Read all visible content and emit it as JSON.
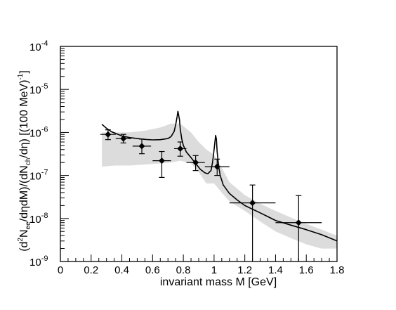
{
  "chart_data": {
    "type": "line",
    "title": "",
    "xlabel": "invariant mass M [GeV]",
    "ylabel_parts": {
      "open": "(d",
      "sup2": "2",
      "n1": "N",
      "sub_ee": "ee",
      "mid": "/dηdM)/(dN",
      "sub_ch": "ch",
      "tail": "/dη) [(100 MeV)",
      "sup_m1": "-1",
      "close": "]"
    },
    "xlim": [
      0,
      1.8
    ],
    "ylim": [
      1e-09,
      0.0001
    ],
    "yscale": "log",
    "grid": false,
    "x_ticks": [
      "0",
      "0.2",
      "0.4",
      "0.6",
      "0.8",
      "1",
      "1.2",
      "1.4",
      "1.6",
      "1.8"
    ],
    "y_ticks": [
      {
        "base": "10",
        "exp": "-9"
      },
      {
        "base": "10",
        "exp": "-8"
      },
      {
        "base": "10",
        "exp": "-7"
      },
      {
        "base": "10",
        "exp": "-6"
      },
      {
        "base": "10",
        "exp": "-5"
      },
      {
        "base": "10",
        "exp": "-4"
      }
    ],
    "data_points": [
      {
        "x": 0.31,
        "y": 9e-07,
        "xerr": 0.05,
        "ylo": 6.8e-07,
        "yhi": 1.15e-06
      },
      {
        "x": 0.41,
        "y": 7.2e-07,
        "xerr": 0.05,
        "ylo": 5.7e-07,
        "yhi": 9e-07
      },
      {
        "x": 0.53,
        "y": 4.8e-07,
        "xerr": 0.06,
        "ylo": 3.2e-07,
        "yhi": 7e-07
      },
      {
        "x": 0.66,
        "y": 2.2e-07,
        "xerr": 0.06,
        "ylo": 9e-08,
        "yhi": 3.6e-07
      },
      {
        "x": 0.78,
        "y": 4.2e-07,
        "xerr": 0.04,
        "ylo": 2.8e-07,
        "yhi": 6e-07
      },
      {
        "x": 0.88,
        "y": 2e-07,
        "xerr": 0.06,
        "ylo": 1.3e-07,
        "yhi": 2.9e-07
      },
      {
        "x": 1.02,
        "y": 1.6e-07,
        "xerr": 0.08,
        "ylo": 1e-07,
        "yhi": 2.4e-07
      },
      {
        "x": 1.25,
        "y": 2.3e-08,
        "xerr": 0.15,
        "ylo": 1e-09,
        "yhi": 6e-08
      },
      {
        "x": 1.55,
        "y": 8e-09,
        "xerr": 0.15,
        "ylo": 1e-09,
        "yhi": 3.4e-08
      }
    ],
    "model_curve": {
      "x": [
        0.27,
        0.3,
        0.33,
        0.36,
        0.4,
        0.45,
        0.5,
        0.55,
        0.6,
        0.65,
        0.7,
        0.72,
        0.74,
        0.75,
        0.76,
        0.765,
        0.775,
        0.78,
        0.79,
        0.8,
        0.82,
        0.85,
        0.88,
        0.91,
        0.94,
        0.96,
        0.98,
        0.99,
        1.0,
        1.01,
        1.015,
        1.02,
        1.03,
        1.04,
        1.06,
        1.1,
        1.15,
        1.2,
        1.3,
        1.4,
        1.5,
        1.6,
        1.7,
        1.8
      ],
      "y": [
        1.55e-06,
        1.25e-06,
        1.05e-06,
        9.5e-07,
        8.3e-07,
        7.6e-07,
        7.2e-07,
        6.9e-07,
        6.7e-07,
        6.8e-07,
        7.2e-07,
        8e-07,
        1.05e-06,
        1.5e-06,
        2.4e-06,
        3.1e-06,
        2e-06,
        1.2e-06,
        7e-07,
        5e-07,
        3.5e-07,
        2.6e-07,
        1.9e-07,
        1.4e-07,
        1.15e-07,
        1.1e-07,
        1.3e-07,
        2e-07,
        4e-07,
        8.5e-07,
        7e-07,
        3.5e-07,
        1.6e-07,
        1e-07,
        6e-08,
        3.8e-08,
        2.7e-08,
        2e-08,
        1.35e-08,
        9e-09,
        7e-09,
        5.5e-09,
        4.2e-09,
        3e-09
      ]
    },
    "uncertainty_band": {
      "color": "#dcdcdc",
      "x": [
        0.27,
        0.35,
        0.45,
        0.55,
        0.65,
        0.72,
        0.78,
        0.85,
        0.9,
        0.95,
        1.0,
        1.05,
        1.1,
        1.2,
        1.3,
        1.4,
        1.5,
        1.6,
        1.7,
        1.8
      ],
      "upper": [
        1e-06,
        1e-06,
        1e-06,
        1.1e-06,
        1.3e-06,
        1.6e-06,
        1.6e-06,
        1e-06,
        6e-07,
        4e-07,
        3e-07,
        1.5e-07,
        7e-08,
        3.5e-08,
        2.2e-08,
        1.5e-08,
        1.05e-08,
        7.5e-09,
        5.5e-09,
        4e-09
      ],
      "lower": [
        1.6e-07,
        1.7e-07,
        1.7e-07,
        1.8e-07,
        1.9e-07,
        2e-07,
        2.2e-07,
        1.9e-07,
        1.2e-07,
        6.5e-08,
        6.5e-08,
        4e-08,
        2.5e-08,
        1.5e-08,
        8.5e-09,
        5e-09,
        3.5e-09,
        2.5e-09,
        2e-09,
        2e-09
      ]
    },
    "colors": {
      "curve": "#000000",
      "points": "#000000",
      "band": "#dcdcdc"
    }
  }
}
